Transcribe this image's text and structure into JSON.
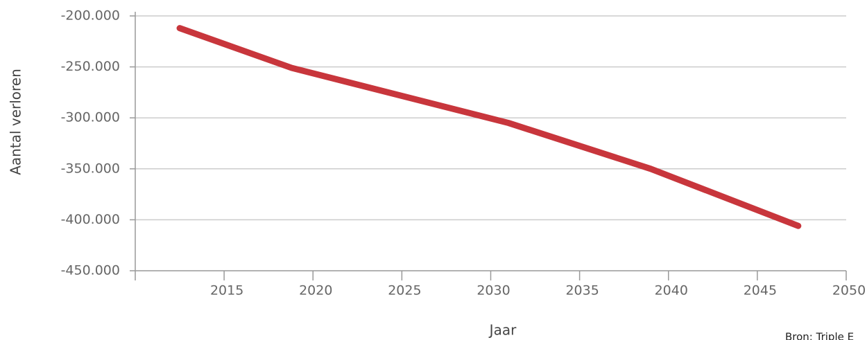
{
  "chart_data": {
    "type": "line",
    "y_label": "Aantal verloren",
    "x_label": "Jaar",
    "source": "Bron: Triple E",
    "x": [
      2012.5,
      2018.8,
      2031,
      2039,
      2047.3
    ],
    "series": [
      {
        "name": "Aantal verloren",
        "color": "#c8363c",
        "values": [
          -212000,
          -251000,
          -305000,
          -350000,
          -406000
        ]
      }
    ],
    "xlim": [
      2010,
      2050
    ],
    "xticks": [
      2015,
      2020,
      2025,
      2030,
      2035,
      2040,
      2045,
      2050
    ],
    "ylim": [
      -450000,
      -200000
    ],
    "yticks": [
      {
        "value": -450000,
        "label": "-450.000"
      },
      {
        "value": -400000,
        "label": "-400.000"
      },
      {
        "value": -350000,
        "label": "-350.000"
      },
      {
        "value": -300000,
        "label": "-300.000"
      },
      {
        "value": -250000,
        "label": "-250.000"
      },
      {
        "value": -200000,
        "label": "-200.000"
      }
    ],
    "grid": true
  }
}
